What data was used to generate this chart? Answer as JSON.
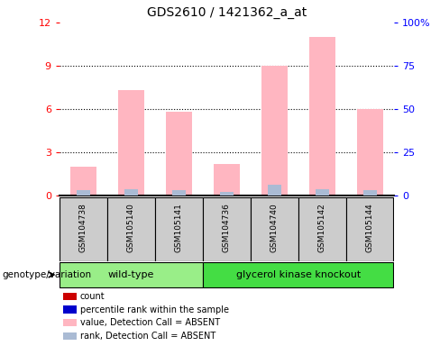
{
  "title": "GDS2610 / 1421362_a_at",
  "samples": [
    "GSM104738",
    "GSM105140",
    "GSM105141",
    "GSM104736",
    "GSM104740",
    "GSM105142",
    "GSM105144"
  ],
  "group_labels": [
    "wild-type",
    "glycerol kinase knockout"
  ],
  "pink_bars": [
    2.0,
    7.3,
    5.8,
    2.2,
    9.0,
    11.0,
    6.0
  ],
  "blue_bars": [
    0.35,
    0.45,
    0.35,
    0.25,
    0.75,
    0.45,
    0.35
  ],
  "ylim_left": [
    0,
    12
  ],
  "ylim_right": [
    0,
    100
  ],
  "yticks_left": [
    0,
    3,
    6,
    9,
    12
  ],
  "yticks_right": [
    0,
    25,
    50,
    75,
    100
  ],
  "yticklabels_right": [
    "0",
    "25",
    "50",
    "75",
    "100%"
  ],
  "color_pink": "#FFB6C1",
  "color_blue": "#AABBD4",
  "color_red": "#CC0000",
  "color_dark_blue": "#0000CC",
  "color_wt_bg": "#99EE88",
  "color_ko_bg": "#44DD44",
  "color_sample_bg": "#CCCCCC",
  "legend_labels": [
    "count",
    "percentile rank within the sample",
    "value, Detection Call = ABSENT",
    "rank, Detection Call = ABSENT"
  ],
  "legend_colors": [
    "#CC0000",
    "#0000CC",
    "#FFB6C1",
    "#AABBD4"
  ],
  "genotype_label": "genotype/variation"
}
